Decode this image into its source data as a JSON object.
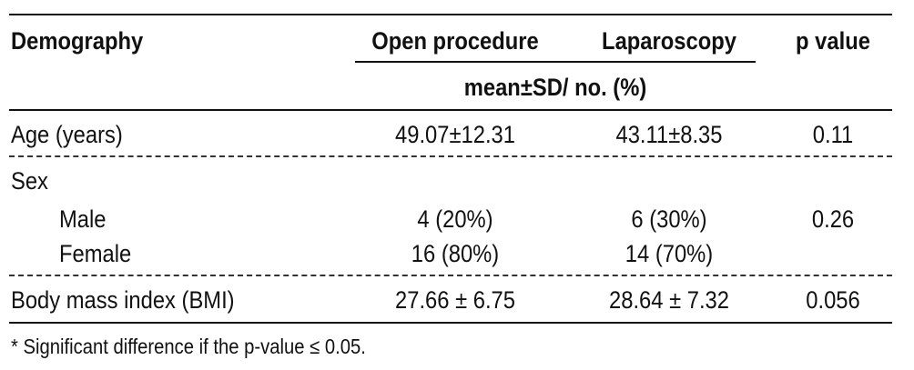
{
  "table": {
    "headers": {
      "demography": "Demography",
      "open_procedure": "Open procedure",
      "laparoscopy": "Laparoscopy",
      "p_value": "p value",
      "subheader": "mean±SD/ no. (%)"
    },
    "rows": [
      {
        "label": "Age (years)",
        "open": "49.07±12.31",
        "lap": "43.11±8.35",
        "p": "0.11"
      },
      {
        "label": "Sex",
        "open": "",
        "lap": "",
        "p": ""
      },
      {
        "label": "Male",
        "open": "4 (20%)",
        "lap": "6 (30%)",
        "p": "0.26"
      },
      {
        "label": "Female",
        "open": "16 (80%)",
        "lap": "14 (70%)",
        "p": ""
      },
      {
        "label": "Body mass index (BMI)",
        "open": "27.66 ± 6.75",
        "lap": "28.64 ± 7.32",
        "p": "0.056"
      }
    ],
    "footnote": "* Significant difference if the p-value ≤ 0.05."
  }
}
